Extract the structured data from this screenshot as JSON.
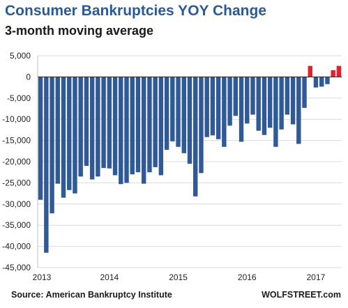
{
  "chart_data": {
    "type": "bar",
    "title": "Consumer Bankruptcies YOY Change",
    "subtitle": "3-month moving average",
    "source": "Source: American Bankruptcy Institute",
    "brand": "WOLFSTREET.com",
    "ylim": [
      -45000,
      5000
    ],
    "yticks": [
      5000,
      0,
      -5000,
      -10000,
      -15000,
      -20000,
      -25000,
      -30000,
      -35000,
      -40000,
      -45000
    ],
    "ytick_labels": [
      "5,000",
      "0",
      "-5,000",
      "-10,000",
      "-15,000",
      "-20,000",
      "-25,000",
      "-30,000",
      "-35,000",
      "-40,000",
      "-45,000"
    ],
    "xtick_labels": [
      "2013",
      "2014",
      "2015",
      "2016",
      "2017"
    ],
    "xtick_months": [
      0,
      12,
      24,
      36,
      48
    ],
    "grid": true,
    "colors": {
      "negative": "#2f5a97",
      "positive": "#e5202b",
      "grid": "#d9d9d9",
      "title": "#2a5a96"
    },
    "series": [
      {
        "values": [
          -29000,
          -41500,
          -32200,
          -25200,
          -28500,
          -26700,
          -27500,
          -23500,
          -21000,
          -24200,
          -23500,
          -21500,
          -21600,
          -23200,
          -25300,
          -25000,
          -23000,
          -22500,
          -25200,
          -22500,
          -21300,
          -23200,
          -17200,
          -15200,
          -16500,
          -18000,
          -20500,
          -28200,
          -22700,
          -14200,
          -13800,
          -14700,
          -16500,
          -11500,
          -9200,
          -15300,
          -11000,
          -8900,
          -12700,
          -13700,
          -12000,
          -16500,
          -12400,
          -8900,
          -11200,
          -15800,
          -7300,
          2600,
          -2500,
          -2300,
          -1700,
          1600,
          2600
        ]
      }
    ]
  }
}
